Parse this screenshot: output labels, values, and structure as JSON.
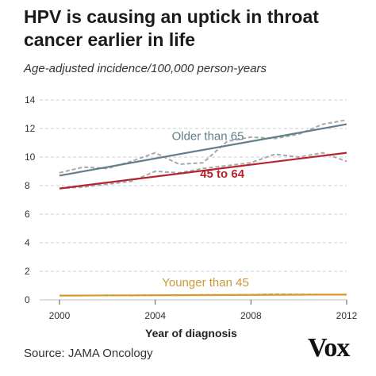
{
  "title": "HPV is causing an uptick in throat cancer earlier in life",
  "subtitle": "Age-adjusted incidence/100,000 person-years",
  "source": "Source: JAMA Oncology",
  "logo": "Vox",
  "chart_data": {
    "type": "line",
    "xlabel": "Year of diagnosis",
    "ylabel": "",
    "xlim": [
      2000,
      2012
    ],
    "ylim": [
      0,
      14
    ],
    "xticks": [
      2000,
      2004,
      2008,
      2012
    ],
    "yticks": [
      0,
      2,
      4,
      6,
      8,
      10,
      12,
      14
    ],
    "grid": "horizontal dashed",
    "series": [
      {
        "name": "Older than 65",
        "color": "#5f7f8a",
        "label_year": 2006.2,
        "label_value": 11.2,
        "observed": {
          "x": [
            2000,
            2001,
            2002,
            2003,
            2004,
            2005,
            2006,
            2007,
            2008,
            2009,
            2010,
            2011,
            2012
          ],
          "y": [
            8.9,
            9.3,
            9.2,
            9.7,
            10.3,
            9.5,
            9.6,
            11.1,
            11.4,
            11.3,
            11.6,
            12.3,
            12.6
          ]
        },
        "trend": {
          "x": [
            2000,
            2012
          ],
          "y": [
            8.7,
            12.3
          ]
        }
      },
      {
        "name": "45 to 64",
        "color": "#b5232e",
        "label_year": 2006.8,
        "label_value": 8.55,
        "observed": {
          "x": [
            2000,
            2001,
            2002,
            2003,
            2004,
            2005,
            2006,
            2007,
            2008,
            2009,
            2010,
            2011,
            2012
          ],
          "y": [
            7.8,
            7.9,
            8.1,
            8.3,
            9.0,
            8.9,
            9.2,
            9.4,
            9.6,
            10.2,
            10.0,
            10.3,
            9.7
          ]
        },
        "trend": {
          "x": [
            2000,
            2012
          ],
          "y": [
            7.8,
            10.3
          ]
        }
      },
      {
        "name": "Younger than 45",
        "color": "#d99a2b",
        "label_color": "#c99a3a",
        "label_year": 2006.1,
        "label_value": 0.95,
        "observed": {
          "x": [
            2000,
            2001,
            2002,
            2003,
            2004,
            2005,
            2006,
            2007,
            2008,
            2009,
            2010,
            2011,
            2012
          ],
          "y": [
            0.3,
            0.3,
            0.32,
            0.3,
            0.33,
            0.32,
            0.35,
            0.34,
            0.36,
            0.4,
            0.38,
            0.37,
            0.36
          ]
        },
        "trend": {
          "x": [
            2000,
            2012
          ],
          "y": [
            0.3,
            0.37
          ]
        }
      }
    ]
  }
}
